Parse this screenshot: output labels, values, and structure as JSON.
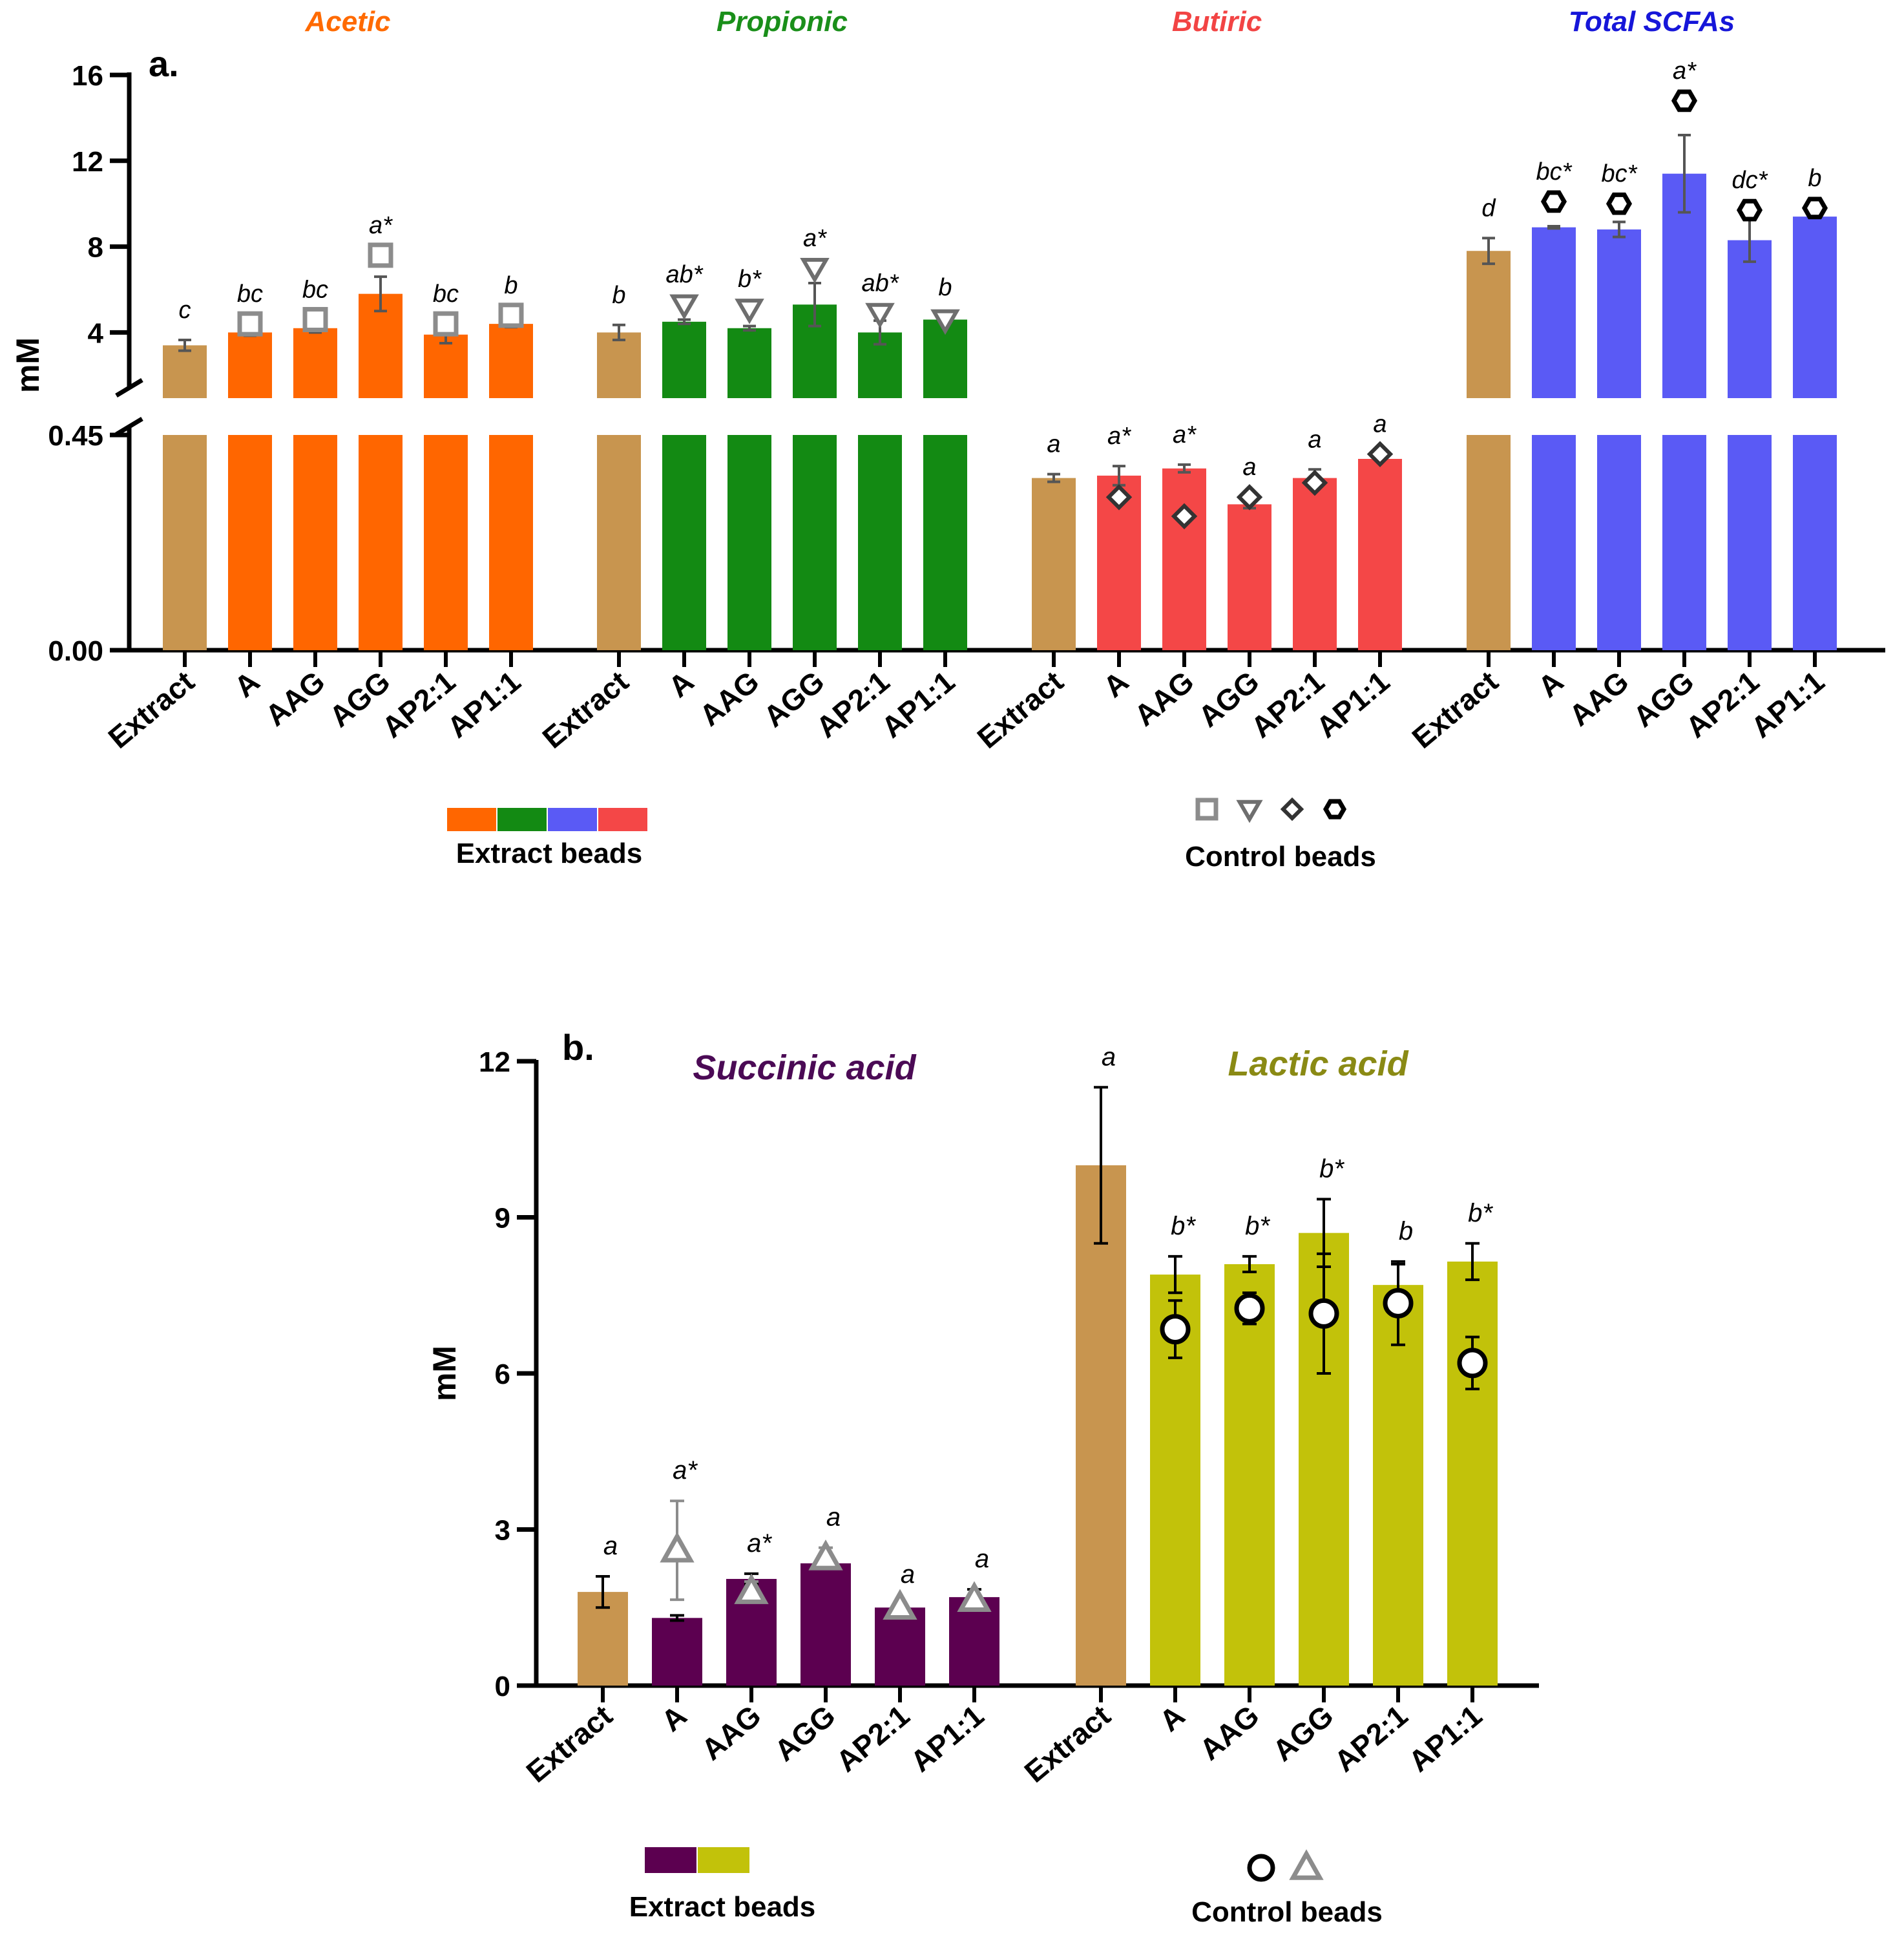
{
  "chart_data": [
    {
      "type": "bar",
      "panel_label": "a.",
      "ylabel": "mM",
      "y_axis": {
        "broken": true,
        "lower_range": [
          0,
          0.45
        ],
        "lower_tick_labels": [
          "0.00",
          "0.45"
        ],
        "upper_range": [
          1,
          16
        ],
        "upper_tick_labels": [
          "4",
          "8",
          "12",
          "16"
        ]
      },
      "categories": [
        "Extract",
        "A",
        "AAG",
        "AGG",
        "AP2:1",
        "AP1:1"
      ],
      "groups": [
        {
          "name": "Acetic",
          "title_color": "#ff6a00",
          "bar_color": "#ff6600",
          "extract_color": "#c8954f",
          "values": [
            3.4,
            4.0,
            4.2,
            5.8,
            3.9,
            4.4
          ],
          "errors": [
            0.25,
            0.15,
            0.2,
            0.8,
            0.4,
            0.15
          ],
          "control_values": [
            null,
            4.4,
            4.6,
            7.6,
            4.4,
            4.8
          ],
          "control_marker": "square",
          "letters": [
            "c",
            "bc",
            "bc",
            "a*",
            "bc",
            "b"
          ]
        },
        {
          "name": "Propionic",
          "title_color": "#1a8f1a",
          "bar_color": "#138a13",
          "extract_color": "#c8954f",
          "values": [
            4.0,
            4.5,
            4.2,
            5.3,
            4.0,
            4.6
          ],
          "errors": [
            0.35,
            0.1,
            0.1,
            1.0,
            0.55,
            0.1
          ],
          "control_values": [
            null,
            5.3,
            5.1,
            7.0,
            4.9,
            4.6
          ],
          "control_marker": "triangle-down",
          "letters": [
            "b",
            "ab*",
            "b*",
            "a*",
            "ab*",
            "b"
          ]
        },
        {
          "name": "Butiric",
          "title_color": "#f24444",
          "bar_color": "#f44747",
          "extract_color": "#c8954f",
          "values": [
            0.36,
            0.365,
            0.38,
            0.305,
            0.36,
            0.4
          ],
          "errors": [
            0.008,
            0.02,
            0.008,
            0.008,
            0.018,
            0.0
          ],
          "control_values": [
            null,
            0.32,
            0.28,
            0.32,
            0.35,
            0.41
          ],
          "control_marker": "diamond",
          "letters": [
            "a",
            "a*",
            "a*",
            "a",
            "a",
            "a"
          ]
        },
        {
          "name": "Total SCFAs",
          "title_color": "#1616d9",
          "bar_color": "#5a5af5",
          "extract_color": "#c8954f",
          "values": [
            7.8,
            8.9,
            8.8,
            11.4,
            8.3,
            9.4
          ],
          "errors": [
            0.6,
            0.05,
            0.35,
            1.8,
            1.0,
            0.05
          ],
          "control_values": [
            null,
            10.1,
            10.0,
            14.8,
            9.7,
            9.8
          ],
          "control_marker": "hexagon",
          "letters": [
            "d",
            "bc*",
            "bc*",
            "a*",
            "dc*",
            "b"
          ]
        }
      ],
      "legend": {
        "extract_label": "Extract beads",
        "control_label": "Control beads",
        "extract_swatches": [
          "#ff6600",
          "#138a13",
          "#5a5af5",
          "#f44747"
        ],
        "control_markers": [
          "square",
          "triangle-down",
          "diamond",
          "hexagon"
        ]
      }
    },
    {
      "type": "bar",
      "panel_label": "b.",
      "ylabel": "mM",
      "ylim": [
        0,
        12
      ],
      "ytick_labels": [
        "0",
        "3",
        "6",
        "9",
        "12"
      ],
      "categories": [
        "Extract",
        "A",
        "AAG",
        "AGG",
        "AP2:1",
        "AP1:1"
      ],
      "groups": [
        {
          "name": "Succinic acid",
          "title_color": "#4b0a55",
          "bar_color": "#5c0050",
          "extract_color": "#c8954f",
          "values": [
            1.8,
            1.3,
            2.05,
            2.35,
            1.5,
            1.7
          ],
          "errors": [
            0.3,
            0.05,
            0.1,
            0.05,
            0.05,
            0.15
          ],
          "control_values": [
            null,
            2.6,
            1.8,
            2.45,
            1.5,
            1.65
          ],
          "control_errors": [
            null,
            0.95,
            0.2,
            0.2,
            0.0,
            0.05
          ],
          "control_marker": "triangle",
          "letters": [
            "a",
            "a*",
            "a*",
            "a",
            "a",
            "a"
          ]
        },
        {
          "name": "Lactic acid",
          "title_color": "#8a8a14",
          "bar_color": "#c2c20a",
          "extract_color": "#c8954f",
          "values": [
            10.0,
            7.9,
            8.1,
            8.7,
            7.7,
            8.15
          ],
          "errors": [
            1.5,
            0.35,
            0.15,
            0.65,
            0.4,
            0.35
          ],
          "control_values": [
            null,
            6.85,
            7.25,
            7.15,
            7.35,
            6.2
          ],
          "control_errors": [
            null,
            0.55,
            0.3,
            1.15,
            0.8,
            0.5
          ],
          "control_marker": "circle",
          "letters": [
            "a",
            "b*",
            "b*",
            "b*",
            "b",
            "b*"
          ]
        }
      ],
      "legend": {
        "extract_label": "Extract beads",
        "control_label": "Control beads",
        "extract_swatches": [
          "#5c0050",
          "#c2c20a"
        ],
        "control_markers": [
          "circle",
          "triangle"
        ]
      }
    }
  ]
}
